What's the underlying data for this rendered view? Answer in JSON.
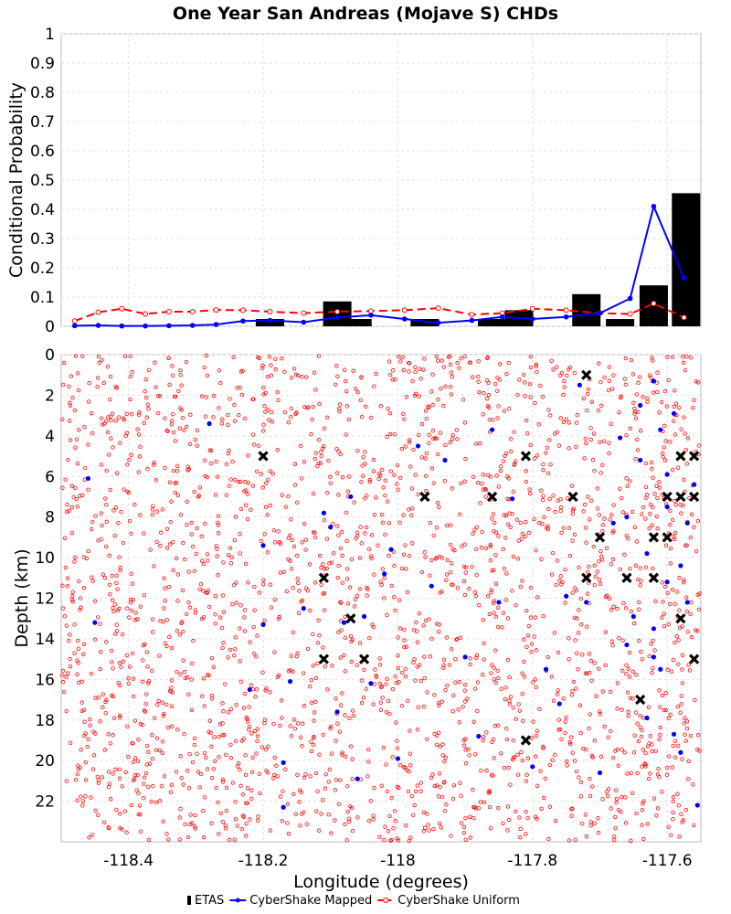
{
  "chart_data": [
    {
      "type": "bar",
      "title": "One Year San Andreas (Mojave S) CHDs",
      "ylabel": "Conditional Probability",
      "xlim": [
        -118.5,
        -117.55
      ],
      "ylim": [
        0,
        1
      ],
      "yticks": [
        "0",
        "0.1",
        "0.2",
        "0.3",
        "0.4",
        "0.5",
        "0.6",
        "0.7",
        "0.8",
        "0.9",
        "1"
      ],
      "ytick_values": [
        0,
        0.1,
        0.2,
        0.3,
        0.4,
        0.5,
        0.6,
        0.7,
        0.8,
        0.9,
        1.0
      ],
      "grid": true,
      "series": [
        {
          "name": "ETAS",
          "kind": "bar",
          "color": "#000000",
          "x": [
            -118.19,
            -118.09,
            -118.06,
            -117.96,
            -117.86,
            -117.82,
            -117.72,
            -117.67,
            -117.62,
            -117.572
          ],
          "values": [
            0.025,
            0.085,
            0.025,
            0.025,
            0.025,
            0.055,
            0.11,
            0.025,
            0.14,
            0.455
          ]
        },
        {
          "name": "CyberShake Mapped",
          "kind": "line",
          "color": "#0000ff",
          "x": [
            -118.48,
            -118.455,
            -118.43,
            -118.405,
            -118.38,
            -118.355,
            -118.33,
            -118.305,
            -118.28,
            -118.255,
            -118.23,
            -118.205,
            -118.18,
            -118.155,
            -118.13,
            -118.105,
            -118.08,
            -118.055,
            -118.03,
            -118.005,
            -117.98,
            -117.955,
            -117.93,
            -117.905,
            -117.88,
            -117.855,
            -117.83,
            -117.805,
            -117.78,
            -117.755,
            -117.73,
            -117.705,
            -117.68,
            -117.655,
            -117.63,
            -117.605,
            -117.58,
            -117.555
          ],
          "values": [
            0.002,
            0.003,
            0.002,
            0.004,
            0.001,
            0.001,
            0.001,
            0.001,
            0.002,
            0.002,
            0.003,
            0.004,
            0.006,
            0.01,
            0.02,
            0.017,
            0.014,
            0.03,
            0.038,
            0.034,
            0.025,
            0.015,
            0.02,
            0.03,
            0.035,
            0.028,
            0.025,
            0.032,
            0.035,
            0.045,
            0.09,
            0.41,
            0.165,
            0.0,
            0.0,
            0.0,
            0.0,
            0.0
          ]
        },
        {
          "name": "CyberShake Uniform",
          "kind": "line",
          "color": "#ff0000",
          "x": [
            -118.48,
            -118.455,
            -118.43,
            -118.405,
            -118.38,
            -118.355,
            -118.33,
            -118.305,
            -118.28,
            -118.255,
            -118.23,
            -118.205,
            -118.18,
            -118.155,
            -118.13,
            -118.105,
            -118.08,
            -118.055,
            -118.03,
            -118.005,
            -117.98,
            -117.955,
            -117.93,
            -117.905,
            -117.88,
            -117.855,
            -117.83,
            -117.805,
            -117.78,
            -117.755,
            -117.73,
            -117.705,
            -117.68,
            -117.655,
            -117.63,
            -117.605,
            -117.58,
            -117.555
          ],
          "values": [
            0.018,
            0.048,
            0.06,
            0.042,
            0.05,
            0.05,
            0.056,
            0.055,
            0.045,
            0.05,
            0.05,
            0.055,
            0.063,
            0.042,
            0.045,
            0.06,
            0.047,
            0.05,
            0.078,
            0.03,
            0.0,
            0.0,
            0.0,
            0.0,
            0.0,
            0.0,
            0.0,
            0.0,
            0.0,
            0.0,
            0.0,
            0.0,
            0.0,
            0.0,
            0.0,
            0.0,
            0.0,
            0.0
          ]
        }
      ]
    },
    {
      "type": "scatter",
      "xlabel": "Longitude (degrees)",
      "ylabel": "Depth (km)",
      "xlim": [
        -118.5,
        -117.55
      ],
      "ylim": [
        24,
        0
      ],
      "xticks": [
        "-118.4",
        "-118.2",
        "-118",
        "-117.8",
        "-117.6"
      ],
      "xtick_values": [
        -118.4,
        -118.2,
        -118.0,
        -117.8,
        -117.6
      ],
      "yticks": [
        "0",
        "2",
        "4",
        "6",
        "8",
        "10",
        "12",
        "14",
        "16",
        "18",
        "20",
        "22"
      ],
      "ytick_values": [
        0,
        2,
        4,
        6,
        8,
        10,
        12,
        14,
        16,
        18,
        20,
        22
      ],
      "grid": true,
      "series": [
        {
          "name": "ETAS",
          "kind": "scatter",
          "marker": "x",
          "color": "#000000",
          "x": [
            -117.72,
            -118.2,
            -117.81,
            -117.58,
            -117.56,
            -117.96,
            -117.86,
            -117.74,
            -117.6,
            -117.58,
            -117.56,
            -117.7,
            -117.62,
            -117.6,
            -118.11,
            -117.72,
            -117.66,
            -117.62,
            -118.07,
            -117.58,
            -118.11,
            -118.05,
            -117.56,
            -117.64,
            -117.81
          ],
          "y": [
            1,
            5,
            5,
            5,
            5,
            7,
            7,
            7,
            7,
            7,
            7,
            9,
            9,
            9,
            11,
            11,
            11,
            11,
            13,
            13,
            15,
            15,
            15,
            17,
            19
          ]
        },
        {
          "name": "CyberShake Mapped",
          "kind": "scatter",
          "marker": "dot",
          "color": "#0000ff",
          "cluster_note": "",
          "x": [
            -118.46,
            -118.45,
            -118.28,
            -118.22,
            -118.2,
            -118.2,
            -118.17,
            -118.17,
            -118.16,
            -118.14,
            -118.11,
            -118.1,
            -118.09,
            -118.08,
            -118.07,
            -118.06,
            -118.05,
            -118.04,
            -118.02,
            -118.01,
            -118.0,
            -117.97,
            -117.95,
            -117.93,
            -117.9,
            -117.88,
            -117.86,
            -117.85,
            -117.83,
            -117.8,
            -117.78,
            -117.76,
            -117.75,
            -117.73,
            -117.72,
            -117.7,
            -117.68,
            -117.67,
            -117.66,
            -117.65,
            -117.64,
            -117.63,
            -117.62,
            -117.61,
            -117.6,
            -117.59,
            -117.58,
            -117.57,
            -117.56,
            -117.555,
            -117.64,
            -117.63,
            -117.62,
            -117.61,
            -117.6,
            -117.58,
            -117.57,
            -117.66,
            -117.62,
            -117.6,
            -117.59
          ],
          "y": [
            6.1,
            13.2,
            3.4,
            16.5,
            13.3,
            9.4,
            20.1,
            22.3,
            16.1,
            12.5,
            7.8,
            8.5,
            17.6,
            13.2,
            7.0,
            20.9,
            12.9,
            16.2,
            10.8,
            9.6,
            19.9,
            4.5,
            11.4,
            5.2,
            14.9,
            18.8,
            3.7,
            12.2,
            7.1,
            20.3,
            15.5,
            17.2,
            11.9,
            1.5,
            12.2,
            20.6,
            8.3,
            4.1,
            14.3,
            12.9,
            2.5,
            17.9,
            1.3,
            15.5,
            7.5,
            18.7,
            10.4,
            8.3,
            6.4,
            22.2,
            5.2,
            9.8,
            13.5,
            3.7,
            11.2,
            19.6,
            12.2,
            8.0,
            14.9,
            5.9,
            2.9
          ]
        },
        {
          "name": "CyberShake Uniform",
          "kind": "scatter",
          "marker": "open-circle",
          "color": "#ff0000",
          "distribution": "dense-uniform",
          "x_range": [
            -118.5,
            -117.55
          ],
          "y_range": [
            0,
            24
          ],
          "count": 2400
        }
      ]
    }
  ],
  "legend": {
    "placement": "bottom-center",
    "items": [
      {
        "label": "ETAS",
        "color": "#000000",
        "kind": "bar"
      },
      {
        "label": "CyberShake Mapped",
        "color": "#0000ff",
        "kind": "line-dot"
      },
      {
        "label": "CyberShake Uniform",
        "color": "#ff0000",
        "kind": "dash-circle"
      }
    ]
  }
}
